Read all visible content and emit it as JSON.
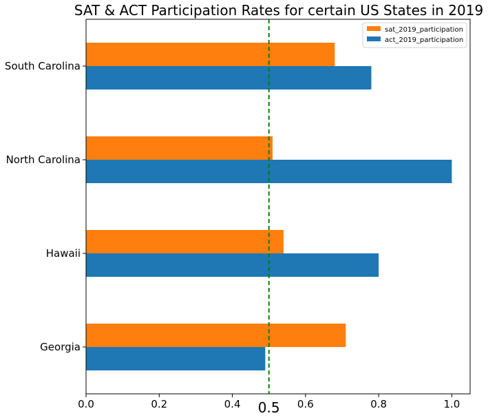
{
  "chart_data": {
    "type": "bar",
    "orientation": "horizontal",
    "title": "SAT & ACT Participation Rates for certain US States in 2019",
    "categories": [
      "Georgia",
      "Hawaii",
      "North Carolina",
      "South Carolina"
    ],
    "series": [
      {
        "name": "sat_2019_participation",
        "color": "#ff7f0e",
        "values": [
          0.71,
          0.54,
          0.51,
          0.68
        ]
      },
      {
        "name": "act_2019_participation",
        "color": "#1f77b4",
        "values": [
          0.49,
          0.8,
          1.0,
          0.78
        ]
      }
    ],
    "xlim": [
      0,
      1.05
    ],
    "xticks": [
      {
        "value": 0.0,
        "label": "0.0"
      },
      {
        "value": 0.2,
        "label": "0.2"
      },
      {
        "value": 0.4,
        "label": "0.4"
      },
      {
        "value": 0.6,
        "label": "0.6"
      },
      {
        "value": 0.8,
        "label": "0.8"
      },
      {
        "value": 1.0,
        "label": "1.0"
      }
    ],
    "reference_line": {
      "value": 0.5,
      "label": "0.5",
      "color": "#008000",
      "style": "dashed"
    },
    "legend_position": "top-right",
    "grid": false
  }
}
